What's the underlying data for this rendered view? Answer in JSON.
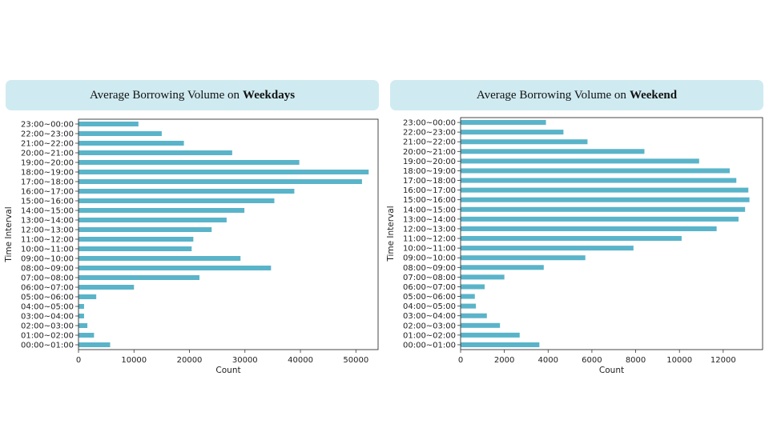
{
  "chart_data": [
    {
      "type": "bar",
      "orientation": "horizontal",
      "title_prefix": "Average Borrowing Volume on",
      "title_bold": "Weekdays",
      "xlabel": "Count",
      "ylabel": "Time Interval",
      "xlim": [
        0,
        54000
      ],
      "xticks": [
        0,
        10000,
        20000,
        30000,
        40000,
        50000
      ],
      "bar_color": "#5ab4c9",
      "categories": [
        "00:00~01:00",
        "01:00~02:00",
        "02:00~03:00",
        "03:00~04:00",
        "04:00~05:00",
        "05:00~06:00",
        "06:00~07:00",
        "07:00~08:00",
        "08:00~09:00",
        "09:00~10:00",
        "10:00~11:00",
        "11:00~12:00",
        "12:00~13:00",
        "13:00~14:00",
        "14:00~15:00",
        "15:00~16:00",
        "16:00~17:00",
        "17:00~18:00",
        "18:00~19:00",
        "19:00~20:00",
        "20:00~21:00",
        "21:00~22:00",
        "22:00~23:00",
        "23:00~00:00"
      ],
      "values": [
        5700,
        2800,
        1600,
        1000,
        1000,
        3200,
        10000,
        21800,
        34700,
        29200,
        20400,
        20700,
        24000,
        26700,
        29900,
        35300,
        38900,
        51100,
        52300,
        39800,
        27700,
        19000,
        15000,
        10800
      ]
    },
    {
      "type": "bar",
      "orientation": "horizontal",
      "title_prefix": "Average Borrowing Volume on",
      "title_bold": "Weekend",
      "xlabel": "Count",
      "ylabel": "Time Interval",
      "xlim": [
        0,
        13800
      ],
      "xticks": [
        0,
        2000,
        4000,
        6000,
        8000,
        10000,
        12000
      ],
      "bar_color": "#5ab4c9",
      "categories": [
        "00:00~01:00",
        "01:00~02:00",
        "02:00~03:00",
        "03:00~04:00",
        "04:00~05:00",
        "05:00~06:00",
        "06:00~07:00",
        "07:00~08:00",
        "08:00~09:00",
        "09:00~10:00",
        "10:00~11:00",
        "11:00~12:00",
        "12:00~13:00",
        "13:00~14:00",
        "14:00~15:00",
        "15:00~16:00",
        "16:00~17:00",
        "17:00~18:00",
        "18:00~19:00",
        "19:00~20:00",
        "20:00~21:00",
        "21:00~22:00",
        "22:00~23:00",
        "23:00~00:00"
      ],
      "values": [
        3600,
        2700,
        1800,
        1200,
        700,
        650,
        1100,
        2000,
        3800,
        5700,
        7900,
        10100,
        11700,
        12700,
        13000,
        13200,
        13150,
        12600,
        12300,
        10900,
        8400,
        5800,
        4700,
        3900
      ]
    }
  ]
}
